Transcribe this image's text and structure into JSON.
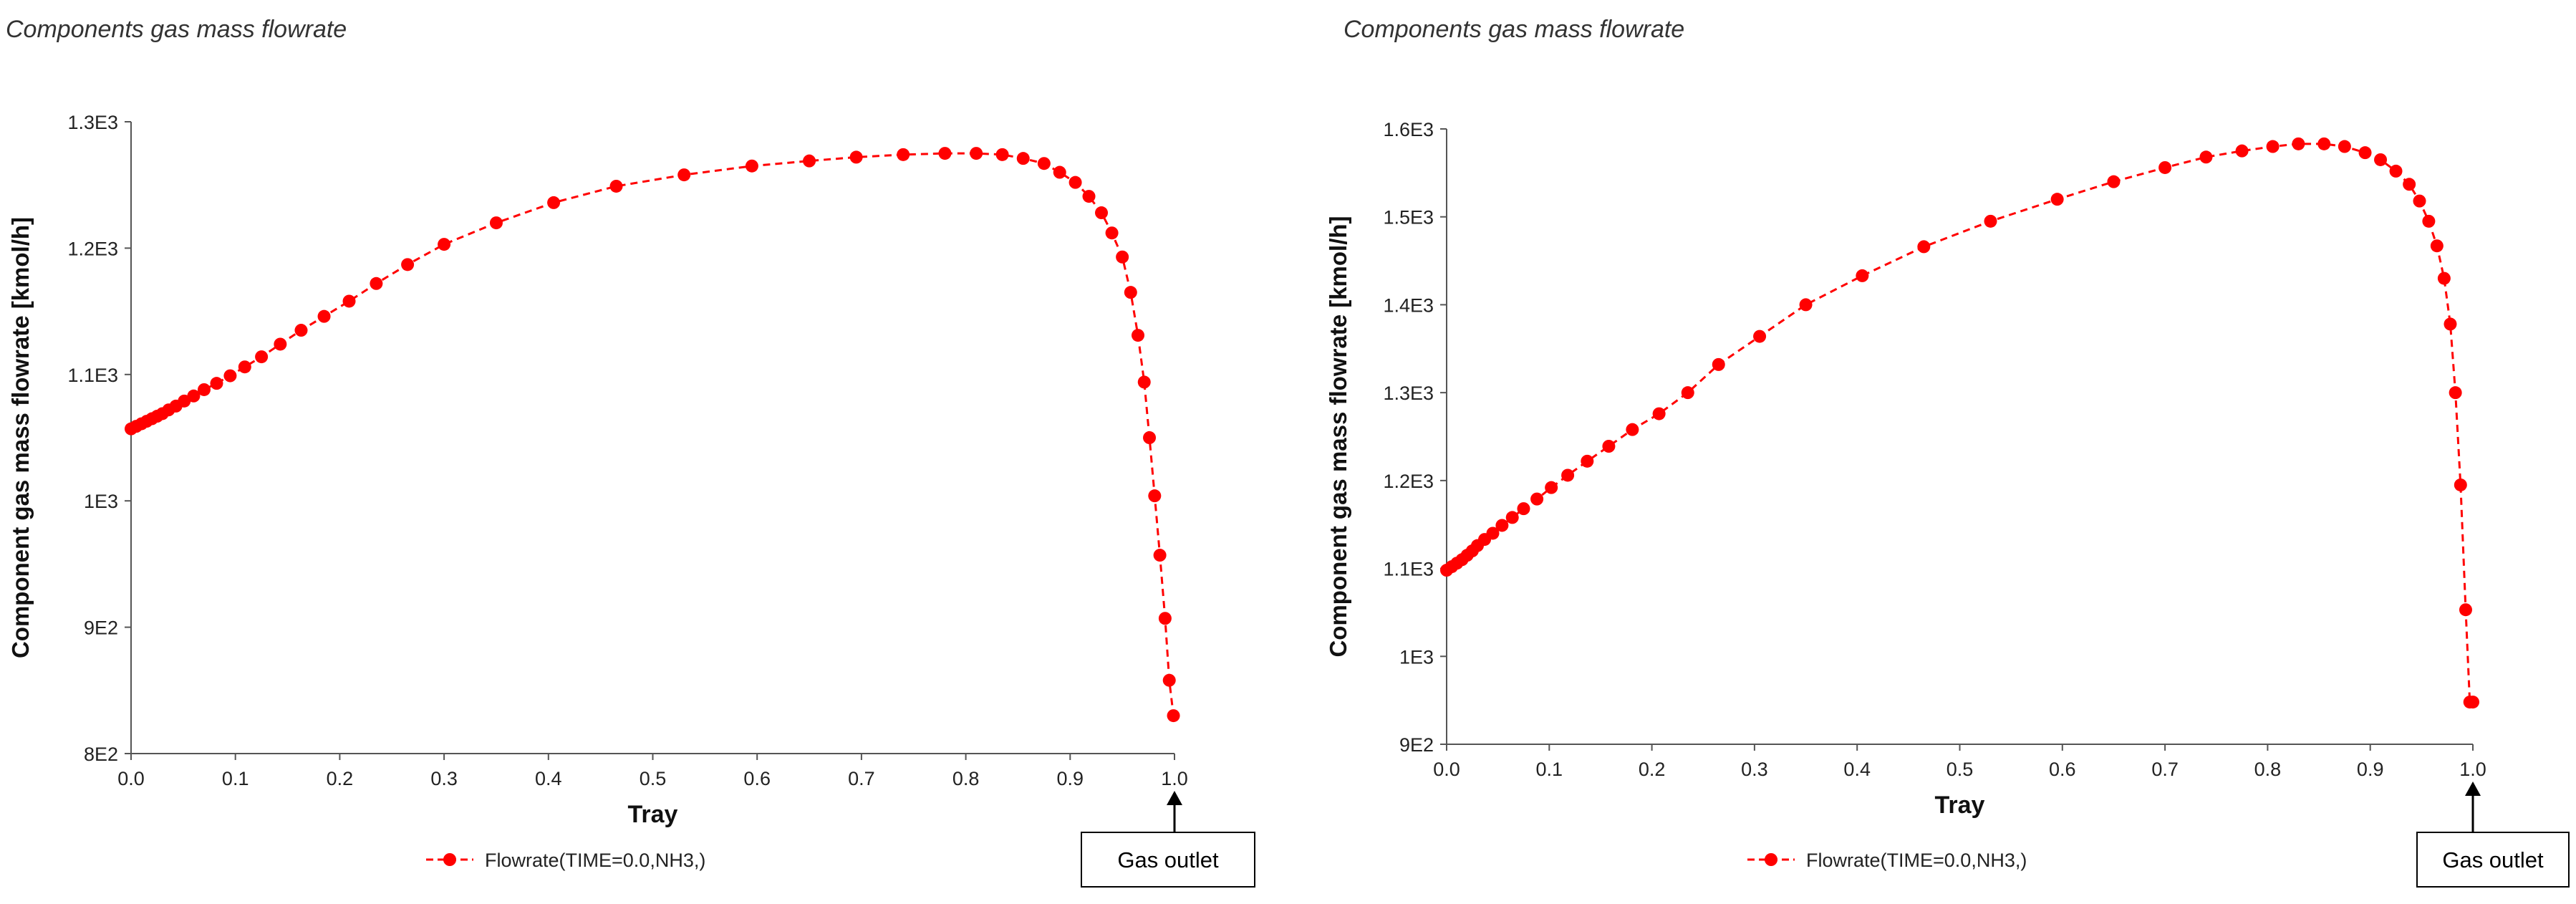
{
  "chart_data": [
    {
      "type": "line",
      "title": "Components gas mass flowrate",
      "xlabel": "Tray",
      "ylabel": "Component gas mass flowrate [kmol/h]",
      "xlim": [
        0,
        1
      ],
      "ylim": [
        800,
        1300
      ],
      "x_ticks": [
        "0.0",
        "0.1",
        "0.2",
        "0.3",
        "0.4",
        "0.5",
        "0.6",
        "0.7",
        "0.8",
        "0.9",
        "1.0"
      ],
      "y_ticks": [
        "8E2",
        "9E2",
        "1E3",
        "1.1E3",
        "1.2E3",
        "1.3E3"
      ],
      "legend": "Flowrate(TIME=0.0,NH3,)",
      "legend_position": "bottom",
      "annotation": "Gas outlet",
      "series": [
        {
          "color": "#ff0000",
          "x": [
            0,
            0.005,
            0.01,
            0.015,
            0.02,
            0.025,
            0.03,
            0.036,
            0.043,
            0.051,
            0.06,
            0.07,
            0.082,
            0.095,
            0.109,
            0.125,
            0.143,
            0.163,
            0.185,
            0.209,
            0.235,
            0.265,
            0.3,
            0.35,
            0.405,
            0.465,
            0.53,
            0.595,
            0.65,
            0.695,
            0.74,
            0.78,
            0.81,
            0.835,
            0.855,
            0.875,
            0.89,
            0.905,
            0.918,
            0.93,
            0.94,
            0.95,
            0.958,
            0.965,
            0.971,
            0.976,
            0.981,
            0.986,
            0.991,
            0.995,
            0.999
          ],
          "y": [
            1057,
            1059,
            1061,
            1063,
            1065,
            1067,
            1069,
            1072,
            1075,
            1079,
            1083,
            1088,
            1093,
            1099,
            1106,
            1114,
            1124,
            1135,
            1146,
            1158,
            1172,
            1187,
            1203,
            1220,
            1236,
            1249,
            1258,
            1265,
            1269,
            1272,
            1274,
            1275,
            1275,
            1274,
            1271,
            1267,
            1260,
            1252,
            1241,
            1228,
            1212,
            1193,
            1165,
            1131,
            1094,
            1050,
            1004,
            957,
            907,
            858,
            830
          ]
        }
      ]
    },
    {
      "type": "line",
      "title": "Components gas mass flowrate",
      "xlabel": "Tray",
      "ylabel": "Component gas mass flowrate [kmol/h]",
      "xlim": [
        0,
        1
      ],
      "ylim": [
        900,
        1600
      ],
      "x_ticks": [
        "0.0",
        "0.1",
        "0.2",
        "0.3",
        "0.4",
        "0.5",
        "0.6",
        "0.7",
        "0.8",
        "0.9",
        "1.0"
      ],
      "y_ticks": [
        "9E2",
        "1E3",
        "1.1E3",
        "1.2E3",
        "1.3E3",
        "1.4E3",
        "1.5E3",
        "1.6E3"
      ],
      "legend": "Flowrate(TIME=0.0,NH3,)",
      "legend_position": "bottom",
      "annotation": "Gas outlet",
      "series": [
        {
          "color": "#ff0000",
          "x": [
            0,
            0.005,
            0.01,
            0.015,
            0.02,
            0.025,
            0.03,
            0.037,
            0.045,
            0.054,
            0.064,
            0.075,
            0.088,
            0.102,
            0.118,
            0.137,
            0.158,
            0.181,
            0.207,
            0.235,
            0.265,
            0.305,
            0.35,
            0.405,
            0.465,
            0.53,
            0.595,
            0.65,
            0.7,
            0.74,
            0.775,
            0.805,
            0.83,
            0.855,
            0.875,
            0.895,
            0.91,
            0.925,
            0.938,
            0.948,
            0.957,
            0.965,
            0.972,
            0.978,
            0.983,
            0.988,
            0.993,
            0.997,
            1.0
          ],
          "y": [
            1098,
            1102,
            1106,
            1110,
            1115,
            1120,
            1126,
            1133,
            1140,
            1149,
            1158,
            1168,
            1179,
            1192,
            1206,
            1222,
            1239,
            1258,
            1276,
            1300,
            1332,
            1364,
            1400,
            1433,
            1466,
            1495,
            1520,
            1540,
            1556,
            1568,
            1575,
            1580,
            1583,
            1583,
            1580,
            1573,
            1565,
            1552,
            1537,
            1518,
            1495,
            1467,
            1430,
            1378,
            1300,
            1195,
            1053,
            948,
            948
          ]
        }
      ]
    }
  ]
}
